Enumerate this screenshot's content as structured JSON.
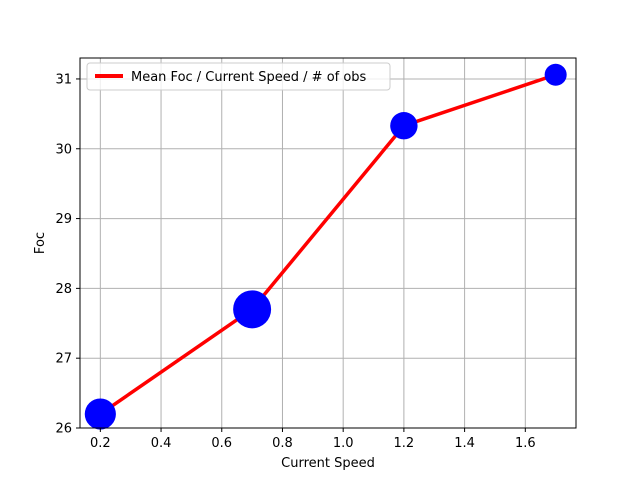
{
  "chart_data": {
    "type": "line",
    "xlabel": "Current Speed",
    "ylabel": "Foc",
    "xlim": [
      0.133,
      1.767
    ],
    "ylim": [
      26.0,
      31.3
    ],
    "xticks": [
      0.2,
      0.4,
      0.6,
      0.8,
      1.0,
      1.2,
      1.4,
      1.6
    ],
    "xtick_labels": [
      "0.2",
      "0.4",
      "0.6",
      "0.8",
      "1.0",
      "1.2",
      "1.4",
      "1.6"
    ],
    "yticks": [
      26,
      27,
      28,
      29,
      30,
      31
    ],
    "ytick_labels": [
      "26",
      "27",
      "28",
      "29",
      "30",
      "31"
    ],
    "grid": true,
    "legend": {
      "position": "top-left"
    },
    "series": [
      {
        "name": "Mean Foc / Current Speed / # of obs",
        "kind": "line",
        "color": "#ff0000",
        "x": [
          0.2,
          0.7,
          1.2,
          1.7
        ],
        "y": [
          26.2,
          27.7,
          30.33,
          31.06
        ]
      },
      {
        "kind": "scatter",
        "color": "#0000ff",
        "x": [
          0.2,
          0.7,
          1.2,
          1.7
        ],
        "y": [
          26.2,
          27.7,
          30.33,
          31.06
        ],
        "relative_size": [
          0.82,
          1.0,
          0.72,
          0.58
        ]
      }
    ]
  }
}
